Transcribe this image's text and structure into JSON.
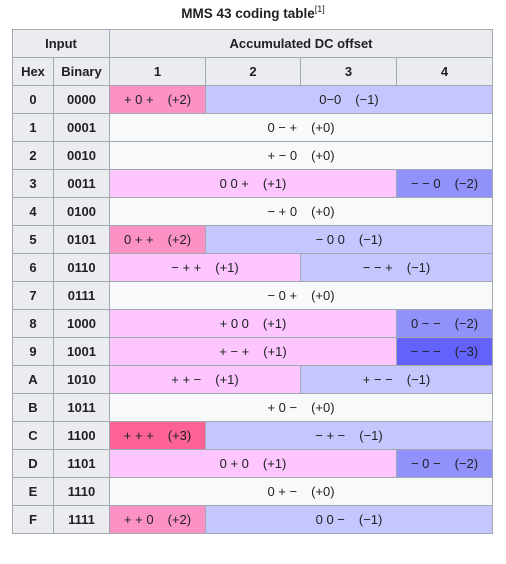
{
  "caption": {
    "title": "MMS 43 coding table",
    "ref": "[1]"
  },
  "headers": {
    "input": "Input",
    "offset": "Accumulated DC offset",
    "hex": "Hex",
    "binary": "Binary",
    "cols": [
      "1",
      "2",
      "3",
      "4"
    ]
  },
  "colors": {
    "plus2": "#fc91c6",
    "plus1": "#fec6fe",
    "zero": "#f8f9fa",
    "minus1": "#c6c6fe",
    "minus2": "#9191fc",
    "plus3": "#fc6394",
    "minus3": "#6363fc",
    "header_bg": "#eaecf0",
    "border": "#a2a9b1"
  },
  "rows": [
    {
      "hex": "0",
      "bin": "0000",
      "cells": [
        {
          "code": "+ 0 +",
          "dc": "(+2)",
          "span": 1,
          "tone": "plus2"
        },
        {
          "code": "0−0",
          "dc": "(−1)",
          "span": 3,
          "tone": "minus1"
        }
      ]
    },
    {
      "hex": "1",
      "bin": "0001",
      "cells": [
        {
          "code": "0 − +",
          "dc": "(+0)",
          "span": 4,
          "tone": "zero"
        }
      ]
    },
    {
      "hex": "2",
      "bin": "0010",
      "cells": [
        {
          "code": "+ − 0",
          "dc": "(+0)",
          "span": 4,
          "tone": "zero"
        }
      ]
    },
    {
      "hex": "3",
      "bin": "0011",
      "cells": [
        {
          "code": "0 0 +",
          "dc": "(+1)",
          "span": 3,
          "tone": "plus1"
        },
        {
          "code": "− − 0",
          "dc": "(−2)",
          "span": 1,
          "tone": "minus2"
        }
      ]
    },
    {
      "hex": "4",
      "bin": "0100",
      "cells": [
        {
          "code": "− + 0",
          "dc": "(+0)",
          "span": 4,
          "tone": "zero"
        }
      ]
    },
    {
      "hex": "5",
      "bin": "0101",
      "cells": [
        {
          "code": "0 + +",
          "dc": "(+2)",
          "span": 1,
          "tone": "plus2"
        },
        {
          "code": "− 0 0",
          "dc": "(−1)",
          "span": 3,
          "tone": "minus1"
        }
      ]
    },
    {
      "hex": "6",
      "bin": "0110",
      "cells": [
        {
          "code": "− + +",
          "dc": "(+1)",
          "span": 2,
          "tone": "plus1"
        },
        {
          "code": "− − +",
          "dc": "(−1)",
          "span": 2,
          "tone": "minus1"
        }
      ]
    },
    {
      "hex": "7",
      "bin": "0111",
      "cells": [
        {
          "code": "− 0 +",
          "dc": "(+0)",
          "span": 4,
          "tone": "zero"
        }
      ]
    },
    {
      "hex": "8",
      "bin": "1000",
      "cells": [
        {
          "code": "+ 0 0",
          "dc": "(+1)",
          "span": 3,
          "tone": "plus1"
        },
        {
          "code": "0 − −",
          "dc": "(−2)",
          "span": 1,
          "tone": "minus2"
        }
      ]
    },
    {
      "hex": "9",
      "bin": "1001",
      "cells": [
        {
          "code": "+ − +",
          "dc": "(+1)",
          "span": 3,
          "tone": "plus1"
        },
        {
          "code": "− − −",
          "dc": "(−3)",
          "span": 1,
          "tone": "minus3"
        }
      ]
    },
    {
      "hex": "A",
      "bin": "1010",
      "cells": [
        {
          "code": "+ + −",
          "dc": "(+1)",
          "span": 2,
          "tone": "plus1"
        },
        {
          "code": "+ − −",
          "dc": "(−1)",
          "span": 2,
          "tone": "minus1"
        }
      ]
    },
    {
      "hex": "B",
      "bin": "1011",
      "cells": [
        {
          "code": "+ 0 −",
          "dc": "(+0)",
          "span": 4,
          "tone": "zero"
        }
      ]
    },
    {
      "hex": "C",
      "bin": "1100",
      "cells": [
        {
          "code": "+ + +",
          "dc": "(+3)",
          "span": 1,
          "tone": "plus3"
        },
        {
          "code": "− + −",
          "dc": "(−1)",
          "span": 3,
          "tone": "minus1"
        }
      ]
    },
    {
      "hex": "D",
      "bin": "1101",
      "cells": [
        {
          "code": "0 + 0",
          "dc": "(+1)",
          "span": 3,
          "tone": "plus1"
        },
        {
          "code": "− 0 −",
          "dc": "(−2)",
          "span": 1,
          "tone": "minus2"
        }
      ]
    },
    {
      "hex": "E",
      "bin": "1110",
      "cells": [
        {
          "code": "0 + −",
          "dc": "(+0)",
          "span": 4,
          "tone": "zero"
        }
      ]
    },
    {
      "hex": "F",
      "bin": "1111",
      "cells": [
        {
          "code": "+ + 0",
          "dc": "(+2)",
          "span": 1,
          "tone": "plus2"
        },
        {
          "code": "0 0 −",
          "dc": "(−1)",
          "span": 3,
          "tone": "minus1"
        }
      ]
    }
  ]
}
